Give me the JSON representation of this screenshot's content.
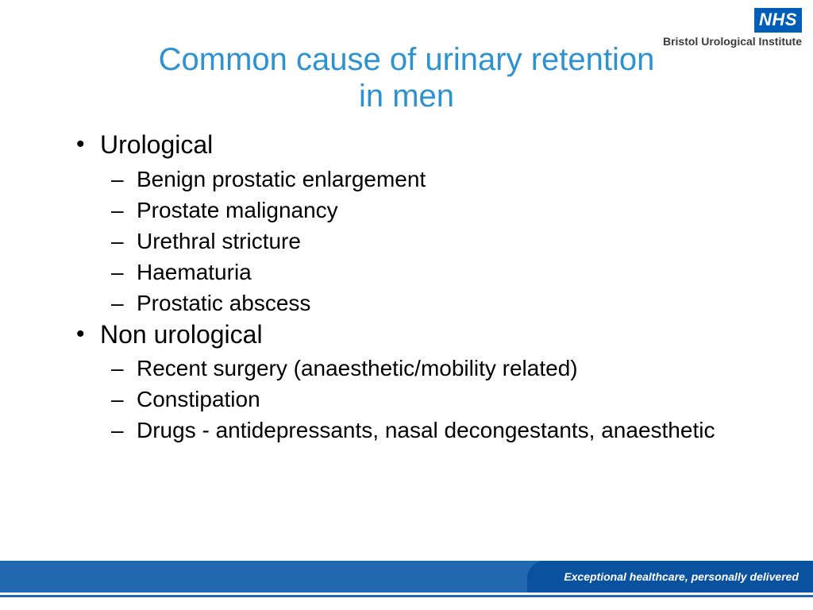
{
  "logo": {
    "nhs": "NHS",
    "institute": "Bristol Urological Institute"
  },
  "title": {
    "line1": "Common cause of urinary retention",
    "line2": "in men",
    "color": "#2e92d0",
    "fontsize": 40
  },
  "content": {
    "l1_fontsize": 32,
    "l2_fontsize": 28,
    "text_color": "#000000",
    "items": [
      {
        "label": "Urological",
        "children": [
          "Benign prostatic enlargement",
          "Prostate malignancy",
          "Urethral stricture",
          "Haematuria",
          "Prostatic abscess"
        ]
      },
      {
        "label": "Non urological",
        "children": [
          "Recent surgery (anaesthetic/mobility related)",
          "Constipation",
          "Drugs - antidepressants, nasal decongestants, anaesthetic"
        ]
      }
    ]
  },
  "footer": {
    "tagline": "Exceptional healthcare, personally delivered",
    "bar_color": "#2268b1",
    "accent_color": "#0a519f"
  },
  "background_color": "#ffffff"
}
